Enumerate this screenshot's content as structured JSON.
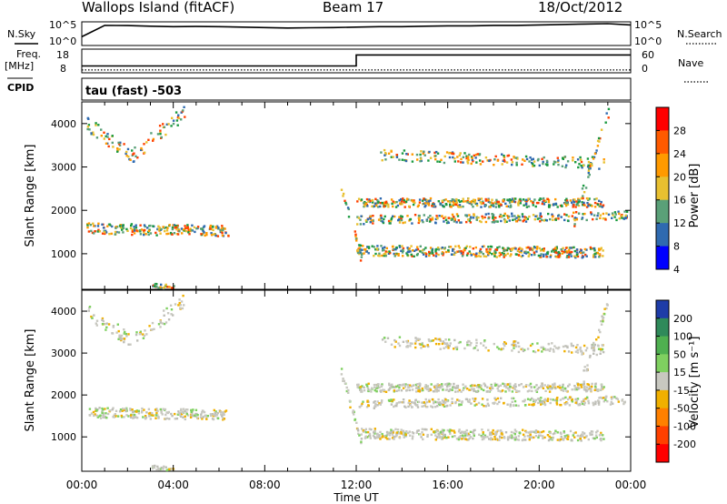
{
  "header": {
    "title": "Wallops Island (fitACF)",
    "beam": "Beam 17",
    "date": "18/Oct/2012"
  },
  "chart_data": [
    {
      "type": "line",
      "name": "noise-panel",
      "left_label": "N.Sky",
      "right_label": "N.Search",
      "left_ticks": [
        "10^5",
        "10^0"
      ],
      "right_ticks": [
        "10^5",
        "10^0"
      ],
      "series": [
        {
          "values": [
            1.8,
            4.4,
            4.35,
            4.2,
            4.1,
            4.15,
            4.1,
            4.0,
            3.9,
            3.8,
            3.85,
            3.9,
            4.0,
            4.1,
            4.1,
            4.2,
            4.3,
            4.3,
            4.4,
            4.4,
            4.5,
            4.6,
            4.7,
            4.8,
            4.5
          ]
        }
      ]
    },
    {
      "type": "line",
      "name": "frequency-panel",
      "left_label_line1": "Freq.",
      "left_label_line2": "[MHz]",
      "right_label": "Nave",
      "left_ticks": [
        "18",
        "8"
      ],
      "right_ticks": [
        "60",
        "0"
      ],
      "cpid_label": "CPID",
      "series": [
        {
          "name": "Freq.",
          "x": [
            0,
            12,
            12,
            24
          ],
          "values": [
            10.5,
            10.5,
            16,
            16
          ]
        },
        {
          "name": "Nave",
          "x": [
            0,
            24
          ],
          "values": [
            3,
            3
          ]
        }
      ]
    },
    {
      "type": "heatmap",
      "name": "power-panel",
      "mode_label": "tau (fast) -503",
      "ylabel": "Slant Range [km]",
      "yticks": [
        "4000",
        "3000",
        "2000",
        "1000"
      ],
      "ylim": [
        180,
        4500
      ],
      "xlim": [
        0,
        24
      ],
      "colorbar_label": "Power [dB]",
      "colorbar_ticks": [
        "28",
        "24",
        "20",
        "16",
        "12",
        "8",
        "4"
      ],
      "colorbar_colors": [
        "#ff0000",
        "#ff5a00",
        "#ff9a00",
        "#e8c030",
        "#5aa078",
        "#2f6ab0",
        "#0000ff"
      ]
    },
    {
      "type": "heatmap",
      "name": "velocity-panel",
      "ylabel": "Slant Range [km]",
      "yticks": [
        "4000",
        "3000",
        "2000",
        "1000"
      ],
      "ylim": [
        180,
        4500
      ],
      "xlim": [
        0,
        24
      ],
      "xlabel": "Time UT",
      "xticks": [
        "00:00",
        "04:00",
        "08:00",
        "12:00",
        "16:00",
        "20:00",
        "00:00"
      ],
      "colorbar_label": "Velocity [m s⁻¹]",
      "colorbar_ticks": [
        "200",
        "100",
        "50",
        "15",
        "-15",
        "-50",
        "-100",
        "-200"
      ],
      "colorbar_colors": [
        "#1e3ca8",
        "#2f8a5a",
        "#4fb050",
        "#7fd060",
        "#c8c8c0",
        "#f0b000",
        "#ff8000",
        "#ff4000",
        "#ff0000"
      ]
    }
  ]
}
